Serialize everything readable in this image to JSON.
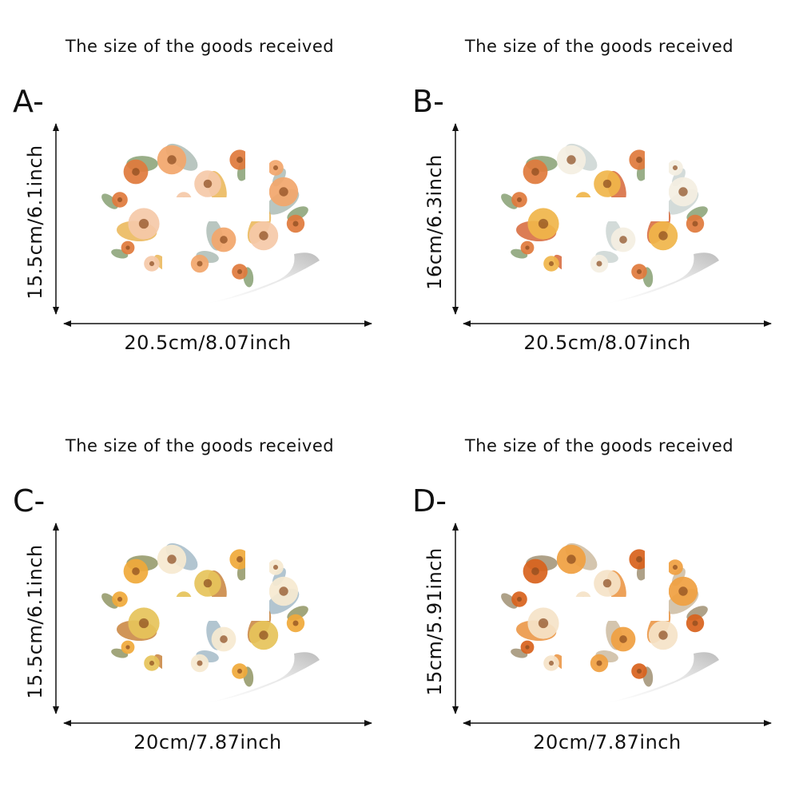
{
  "panels": [
    {
      "header": "The size of the goods received",
      "letter": "A-",
      "height": "15.5cm/6.1inch",
      "width": "20.5cm/8.07inch"
    },
    {
      "header": "The size of the goods received",
      "letter": "B-",
      "height": "16cm/6.3inch",
      "width": "20.5cm/8.07inch"
    },
    {
      "header": "The size of the goods received",
      "letter": "C-",
      "height": "15.5cm/6.1inch",
      "width": "20cm/7.87inch"
    },
    {
      "header": "The size of the goods received",
      "letter": "D-",
      "height": "15cm/5.91inch",
      "width": "20cm/7.87inch"
    }
  ]
}
